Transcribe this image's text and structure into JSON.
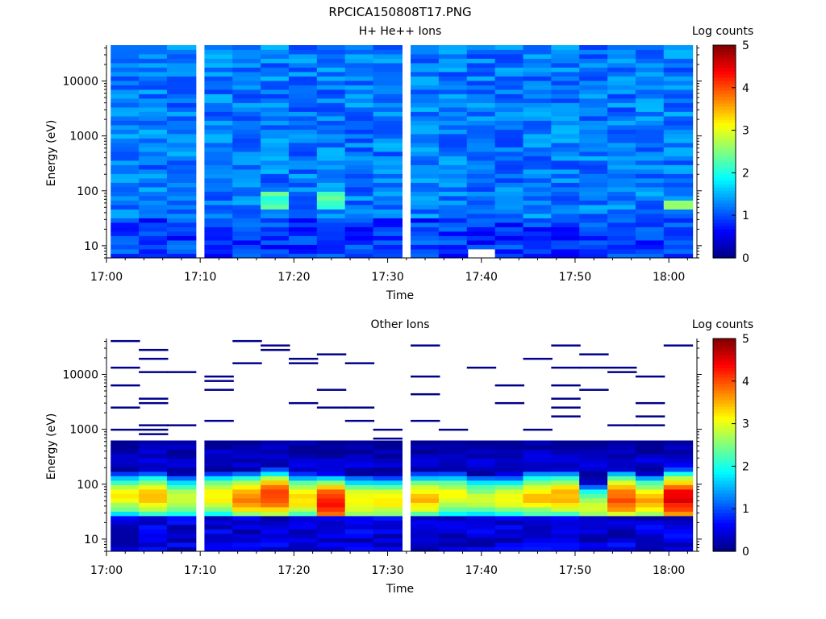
{
  "figure_title": "RPCICA150808T17.PNG",
  "colorbar": {
    "label": "Log counts",
    "range": [
      0,
      5
    ],
    "ticks": [
      "0",
      "1",
      "2",
      "3",
      "4",
      "5"
    ],
    "colormap": "jet"
  },
  "chart_data": [
    {
      "type": "heatmap",
      "title": "H+ He++ Ions",
      "xlabel": "Time",
      "ylabel": "Energy (eV)",
      "x_ticks": [
        "17:00",
        "17:10",
        "17:20",
        "17:30",
        "17:40",
        "17:50",
        "18:00"
      ],
      "x_range": [
        "17:00",
        "18:03"
      ],
      "y_ticks": [
        "10",
        "100",
        "1000",
        "10000"
      ],
      "y_range": [
        6,
        45000
      ],
      "y_scale": "log",
      "z_label": "Log counts",
      "z_range": [
        0,
        5
      ],
      "time_bins": [
        "17:02",
        "17:05",
        "17:08",
        "17:12",
        "17:15",
        "17:18",
        "17:21",
        "17:24",
        "17:27",
        "17:30",
        "17:34",
        "17:37",
        "17:40",
        "17:43",
        "17:46",
        "17:49",
        "17:52",
        "17:55",
        "17:58",
        "18:01"
      ],
      "description_per_bin": "low counts (~0.8-1.5) across all energies; localized enhancement ~2.0-2.5 near 60-80 eV around 17:19 and 17:25; ~2.6 near 55 eV at 18:01; empty bins near 8 eV at 17:41 and 55 eV at 17:38"
    },
    {
      "type": "heatmap",
      "title": "Other Ions",
      "xlabel": "Time",
      "ylabel": "Energy (eV)",
      "x_ticks": [
        "17:00",
        "17:10",
        "17:20",
        "17:30",
        "17:40",
        "17:50",
        "18:00"
      ],
      "x_range": [
        "17:00",
        "18:03"
      ],
      "y_ticks": [
        "10",
        "100",
        "1000",
        "10000"
      ],
      "y_range": [
        6,
        45000
      ],
      "y_scale": "log",
      "z_label": "Log counts",
      "z_range": [
        0,
        5
      ],
      "time_bins": [
        "17:02",
        "17:05",
        "17:08",
        "17:12",
        "17:15",
        "17:18",
        "17:21",
        "17:24",
        "17:27",
        "17:30",
        "17:34",
        "17:37",
        "17:40",
        "17:43",
        "17:46",
        "17:49",
        "17:52",
        "17:55",
        "17:58",
        "18:01"
      ],
      "peak_energy_eV": [
        60,
        60,
        55,
        60,
        55,
        60,
        55,
        45,
        50,
        50,
        55,
        60,
        55,
        55,
        60,
        60,
        40,
        55,
        50,
        55
      ],
      "peak_log_counts": [
        3.1,
        3.4,
        2.9,
        3.2,
        3.7,
        4.1,
        3.3,
        4.4,
        3.2,
        3.2,
        3.4,
        3.1,
        2.8,
        3.0,
        3.4,
        3.5,
        2.8,
        4.0,
        3.5,
        4.5
      ],
      "sparse_counts_above_eV": 600
    }
  ]
}
